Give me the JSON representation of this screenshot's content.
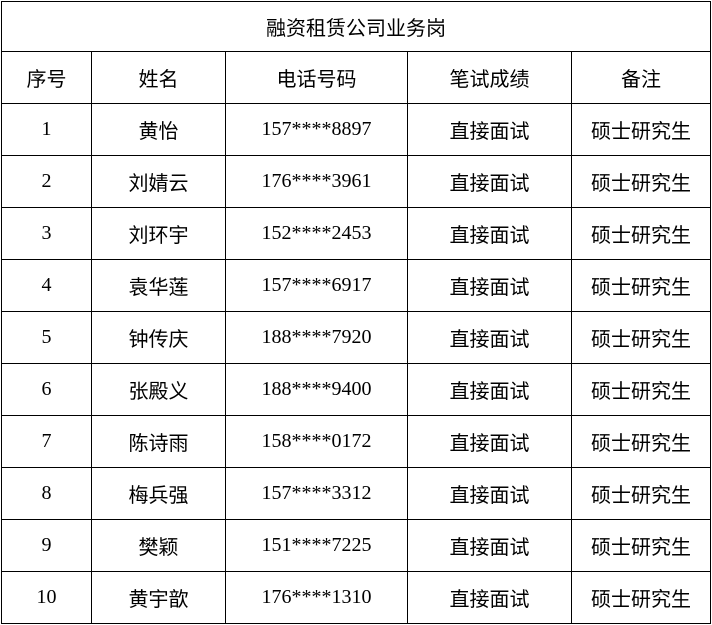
{
  "title": "融资租赁公司业务岗",
  "columns": [
    "序号",
    "姓名",
    "电话号码",
    "笔试成绩",
    "备注"
  ],
  "rows": [
    [
      "1",
      "黄怡",
      "157****8897",
      "直接面试",
      "硕士研究生"
    ],
    [
      "2",
      "刘婧云",
      "176****3961",
      "直接面试",
      "硕士研究生"
    ],
    [
      "3",
      "刘环宇",
      "152****2453",
      "直接面试",
      "硕士研究生"
    ],
    [
      "4",
      "袁华莲",
      "157****6917",
      "直接面试",
      "硕士研究生"
    ],
    [
      "5",
      "钟传庆",
      "188****7920",
      "直接面试",
      "硕士研究生"
    ],
    [
      "6",
      "张殿义",
      "188****9400",
      "直接面试",
      "硕士研究生"
    ],
    [
      "7",
      "陈诗雨",
      "158****0172",
      "直接面试",
      "硕士研究生"
    ],
    [
      "8",
      "梅兵强",
      "157****3312",
      "直接面试",
      "硕士研究生"
    ],
    [
      "9",
      "樊颖",
      "151****7225",
      "直接面试",
      "硕士研究生"
    ],
    [
      "10",
      "黄宇歆",
      "176****1310",
      "直接面试",
      "硕士研究生"
    ]
  ]
}
